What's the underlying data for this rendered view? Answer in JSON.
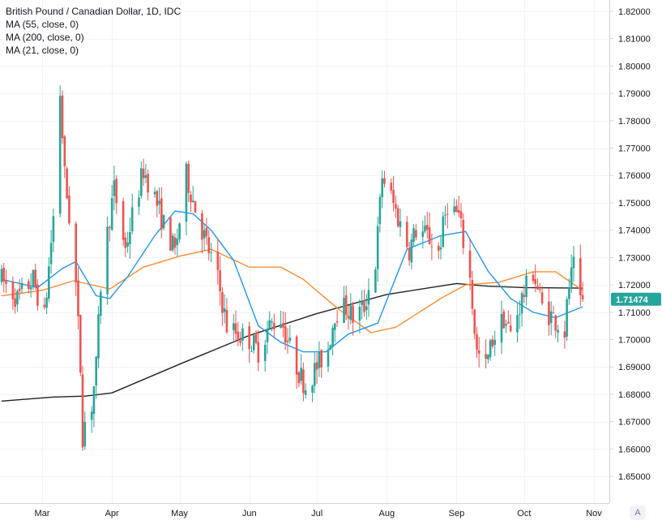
{
  "legend": {
    "symbol": "British Pound / Canadian Dollar, 1D, IDC",
    "ma55": "MA (55, close, 0)",
    "ma200": "MA (200, close, 0)",
    "ma21": "MA (21, close, 0)"
  },
  "last_price": "1.71474",
  "scale_button": "A",
  "colors": {
    "up": "#26a69a",
    "down": "#ef5350",
    "ma21": "#2196f3",
    "ma55": "#ff8c33",
    "ma200": "#222222",
    "price_tag": "#26a69a"
  },
  "chart_data": {
    "type": "candlestick",
    "title": "British Pound / Canadian Dollar, 1D, IDC",
    "ylim": [
      1.645,
      1.825
    ],
    "y_ticks": [
      1.65,
      1.66,
      1.67,
      1.68,
      1.69,
      1.7,
      1.71,
      1.72,
      1.73,
      1.74,
      1.75,
      1.76,
      1.77,
      1.78,
      1.79,
      1.8,
      1.81,
      1.82
    ],
    "y_tick_labels": [
      "1.65000",
      "1.66000",
      "1.67000",
      "1.68000",
      "1.69000",
      "1.70000",
      "1.71000",
      "1.72000",
      "1.73000",
      "1.74000",
      "1.75000",
      "1.76000",
      "1.77000",
      "1.78000",
      "1.79000",
      "1.80000",
      "1.81000",
      "1.82000"
    ],
    "x_labels": [
      {
        "label": "Mar",
        "date": "2020-03-01"
      },
      {
        "label": "Apr",
        "date": "2020-04-01"
      },
      {
        "label": "May",
        "date": "2020-05-01"
      },
      {
        "label": "Jun",
        "date": "2020-06-01"
      },
      {
        "label": "Jul",
        "date": "2020-07-01"
      },
      {
        "label": "Aug",
        "date": "2020-08-01"
      },
      {
        "label": "Sep",
        "date": "2020-09-01"
      },
      {
        "label": "Oct",
        "date": "2020-10-01"
      },
      {
        "label": "Nov",
        "date": "2020-11-01"
      }
    ],
    "grid": true,
    "legend_position": "top-left",
    "close_path": [
      [
        "2020-02-12",
        1.722
      ],
      [
        "2020-02-19",
        1.715
      ],
      [
        "2020-02-26",
        1.722
      ],
      [
        "2020-03-02",
        1.708
      ],
      [
        "2020-03-06",
        1.745
      ],
      [
        "2020-03-09",
        1.79
      ],
      [
        "2020-03-11",
        1.76
      ],
      [
        "2020-03-13",
        1.745
      ],
      [
        "2020-03-16",
        1.72
      ],
      [
        "2020-03-18",
        1.69
      ],
      [
        "2020-03-19",
        1.665
      ],
      [
        "2020-03-20",
        1.67
      ],
      [
        "2020-03-23",
        1.676
      ],
      [
        "2020-03-25",
        1.69
      ],
      [
        "2020-03-27",
        1.72
      ],
      [
        "2020-03-31",
        1.745
      ],
      [
        "2020-04-02",
        1.755
      ],
      [
        "2020-04-07",
        1.733
      ],
      [
        "2020-04-10",
        1.745
      ],
      [
        "2020-04-15",
        1.762
      ],
      [
        "2020-04-20",
        1.752
      ],
      [
        "2020-04-24",
        1.742
      ],
      [
        "2020-04-29",
        1.732
      ],
      [
        "2020-05-04",
        1.76
      ],
      [
        "2020-05-08",
        1.748
      ],
      [
        "2020-05-13",
        1.735
      ],
      [
        "2020-05-18",
        1.722
      ],
      [
        "2020-05-22",
        1.705
      ],
      [
        "2020-05-27",
        1.702
      ],
      [
        "2020-06-01",
        1.7
      ],
      [
        "2020-06-05",
        1.696
      ],
      [
        "2020-06-10",
        1.705
      ],
      [
        "2020-06-15",
        1.708
      ],
      [
        "2020-06-19",
        1.697
      ],
      [
        "2020-06-23",
        1.688
      ],
      [
        "2020-06-26",
        1.683
      ],
      [
        "2020-07-01",
        1.69
      ],
      [
        "2020-07-06",
        1.697
      ],
      [
        "2020-07-09",
        1.71
      ],
      [
        "2020-07-14",
        1.712
      ],
      [
        "2020-07-17",
        1.708
      ],
      [
        "2020-07-22",
        1.712
      ],
      [
        "2020-07-27",
        1.728
      ],
      [
        "2020-07-30",
        1.76
      ],
      [
        "2020-08-03",
        1.752
      ],
      [
        "2020-08-07",
        1.742
      ],
      [
        "2020-08-11",
        1.733
      ],
      [
        "2020-08-14",
        1.74
      ],
      [
        "2020-08-19",
        1.738
      ],
      [
        "2020-08-24",
        1.732
      ],
      [
        "2020-08-28",
        1.75
      ],
      [
        "2020-09-02",
        1.745
      ],
      [
        "2020-09-07",
        1.722
      ],
      [
        "2020-09-10",
        1.695
      ],
      [
        "2020-09-14",
        1.69
      ],
      [
        "2020-09-17",
        1.7
      ],
      [
        "2020-09-22",
        1.708
      ],
      [
        "2020-09-25",
        1.702
      ],
      [
        "2020-09-30",
        1.715
      ],
      [
        "2020-10-05",
        1.725
      ],
      [
        "2020-10-09",
        1.712
      ],
      [
        "2020-10-14",
        1.708
      ],
      [
        "2020-10-19",
        1.703
      ],
      [
        "2020-10-21",
        1.72
      ],
      [
        "2020-10-23",
        1.726
      ],
      [
        "2020-10-26",
        1.712
      ],
      [
        "2020-10-27",
        1.7147
      ]
    ],
    "ma200_path": [
      [
        "2020-02-12",
        1.6775
      ],
      [
        "2020-03-06",
        1.679
      ],
      [
        "2020-03-20",
        1.6793
      ],
      [
        "2020-04-01",
        1.6805
      ],
      [
        "2020-05-01",
        1.691
      ],
      [
        "2020-06-01",
        1.7015
      ],
      [
        "2020-07-01",
        1.7095
      ],
      [
        "2020-08-01",
        1.7165
      ],
      [
        "2020-09-01",
        1.7205
      ],
      [
        "2020-09-15",
        1.7195
      ],
      [
        "2020-10-01",
        1.719
      ],
      [
        "2020-10-27",
        1.7188
      ]
    ],
    "ma55_path": [
      [
        "2020-02-12",
        1.716
      ],
      [
        "2020-03-01",
        1.718
      ],
      [
        "2020-03-15",
        1.7215
      ],
      [
        "2020-03-31",
        1.7185
      ],
      [
        "2020-04-15",
        1.7265
      ],
      [
        "2020-05-01",
        1.7305
      ],
      [
        "2020-05-15",
        1.733
      ],
      [
        "2020-06-01",
        1.7265
      ],
      [
        "2020-06-15",
        1.7265
      ],
      [
        "2020-06-25",
        1.722
      ],
      [
        "2020-07-10",
        1.7115
      ],
      [
        "2020-07-25",
        1.7025
      ],
      [
        "2020-08-05",
        1.7045
      ],
      [
        "2020-08-25",
        1.715
      ],
      [
        "2020-09-05",
        1.72
      ],
      [
        "2020-09-20",
        1.721
      ],
      [
        "2020-10-05",
        1.7248
      ],
      [
        "2020-10-15",
        1.7248
      ],
      [
        "2020-10-27",
        1.718
      ]
    ],
    "ma21_path": [
      [
        "2020-02-12",
        1.722
      ],
      [
        "2020-02-28",
        1.719
      ],
      [
        "2020-03-10",
        1.726
      ],
      [
        "2020-03-16",
        1.7285
      ],
      [
        "2020-03-25",
        1.716
      ],
      [
        "2020-03-31",
        1.715
      ],
      [
        "2020-04-08",
        1.723
      ],
      [
        "2020-04-20",
        1.738
      ],
      [
        "2020-04-29",
        1.747
      ],
      [
        "2020-05-07",
        1.746
      ],
      [
        "2020-05-15",
        1.74
      ],
      [
        "2020-05-25",
        1.729
      ],
      [
        "2020-06-05",
        1.705
      ],
      [
        "2020-06-15",
        1.699
      ],
      [
        "2020-06-25",
        1.6955
      ],
      [
        "2020-07-05",
        1.6955
      ],
      [
        "2020-07-15",
        1.702
      ],
      [
        "2020-07-28",
        1.706
      ],
      [
        "2020-08-10",
        1.733
      ],
      [
        "2020-08-25",
        1.738
      ],
      [
        "2020-09-05",
        1.7395
      ],
      [
        "2020-09-15",
        1.725
      ],
      [
        "2020-09-25",
        1.715
      ],
      [
        "2020-10-05",
        1.71
      ],
      [
        "2020-10-15",
        1.708
      ],
      [
        "2020-10-27",
        1.712
      ]
    ]
  }
}
